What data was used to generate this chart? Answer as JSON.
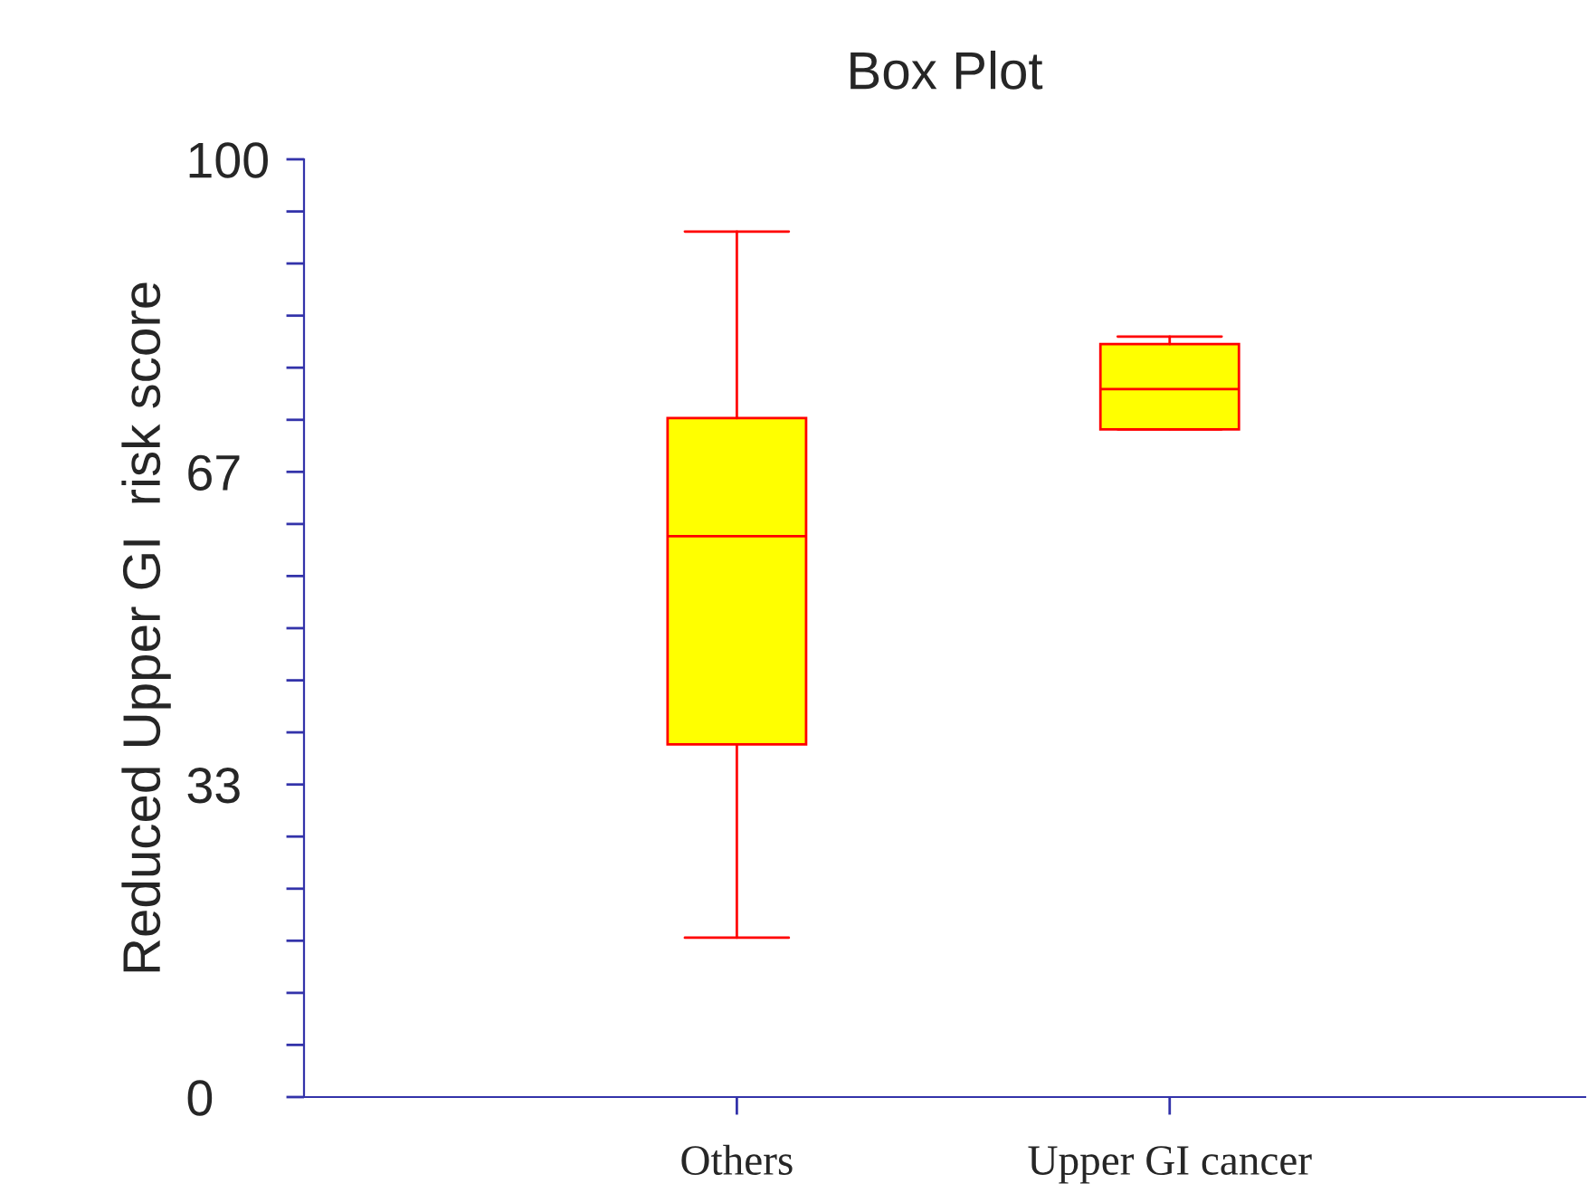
{
  "chart_data": {
    "type": "box",
    "title": "Box Plot",
    "ylabel": "Reduced Upper GI  risk score",
    "categories": [
      "Others",
      "Upper GI cancer"
    ],
    "boxes": [
      {
        "low": 17.0,
        "q1": 37.6,
        "median": 59.8,
        "q3": 72.4,
        "high": 92.3
      },
      {
        "low": 71.2,
        "q1": 71.2,
        "median": 75.5,
        "q3": 80.3,
        "high": 81.1
      }
    ],
    "color": "#ffff00",
    "ylim": [
      0,
      100
    ],
    "yticks": [
      0,
      {
        "value": 5.56,
        "label": null
      },
      {
        "value": 11.11,
        "label": null
      },
      {
        "value": 16.67,
        "label": null
      },
      {
        "value": 22.22,
        "label": null
      },
      {
        "value": 27.78,
        "label": null
      },
      {
        "value": 33.33,
        "label": "33"
      },
      {
        "value": 38.89,
        "label": null
      },
      {
        "value": 44.44,
        "label": null
      },
      {
        "value": 50,
        "label": null
      },
      {
        "value": 55.56,
        "label": null
      },
      {
        "value": 61.11,
        "label": null
      },
      {
        "value": 66.67,
        "label": "67"
      },
      {
        "value": 72.22,
        "label": null
      },
      {
        "value": 77.78,
        "label": null
      },
      {
        "value": 83.33,
        "label": null
      },
      {
        "value": 88.89,
        "label": null
      },
      {
        "value": 94.44,
        "label": null
      },
      100
    ],
    "grid": false
  }
}
